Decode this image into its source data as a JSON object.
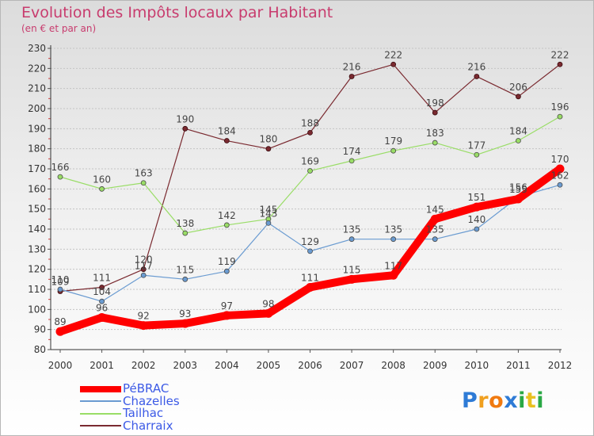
{
  "chart_data": {
    "type": "line",
    "title": "Evolution des Impôts locaux par Habitant",
    "subtitle": "(en € et par an)",
    "x": [
      "2000",
      "2001",
      "2002",
      "2003",
      "2004",
      "2005",
      "2006",
      "2007",
      "2008",
      "2009",
      "2010",
      "2011",
      "2012"
    ],
    "y_ticks": [
      "80",
      "90",
      "100",
      "110",
      "120",
      "130",
      "140",
      "150",
      "160",
      "170",
      "180",
      "190",
      "200",
      "210",
      "220",
      "230"
    ],
    "ylim": [
      80,
      230
    ],
    "grid": "horizontal dotted",
    "legend_position": "bottom-left",
    "series": [
      {
        "name": "PéBRAC",
        "color": "#ff0000",
        "values": [
          89,
          96,
          92,
          93,
          97,
          98,
          111,
          115,
          117,
          145,
          151,
          155,
          170
        ],
        "labels": [
          "89",
          "96",
          "92",
          "93",
          "97",
          "98",
          "111",
          "115",
          "117",
          "145",
          "151",
          "155",
          "170"
        ]
      },
      {
        "name": "Chazelles",
        "color": "#6a9bd1",
        "values": [
          110,
          104,
          117,
          115,
          119,
          143,
          129,
          135,
          135,
          135,
          140,
          156,
          162
        ],
        "labels": [
          "110",
          "104",
          "117",
          "115",
          "119",
          "143",
          "129",
          "135",
          "135",
          "135",
          "140",
          "156",
          "162"
        ]
      },
      {
        "name": "Tailhac",
        "color": "#99dd66",
        "values": [
          166,
          160,
          163,
          138,
          142,
          145,
          169,
          174,
          179,
          183,
          177,
          184,
          196
        ],
        "labels": [
          "166",
          "160",
          "163",
          "138",
          "142",
          "145",
          "169",
          "174",
          "179",
          "183",
          "177",
          "184",
          "196"
        ]
      },
      {
        "name": "Charraix",
        "color": "#7a2a30",
        "values": [
          109,
          111,
          120,
          190,
          184,
          180,
          188,
          216,
          222,
          198,
          216,
          206,
          222
        ],
        "labels": [
          "109",
          "111",
          "120",
          "190",
          "184",
          "180",
          "188",
          "216",
          "222",
          "198",
          "216",
          "206",
          "222"
        ]
      }
    ]
  },
  "logo": {
    "letters": [
      "P",
      "r",
      "o",
      "x",
      "i",
      "t",
      "i"
    ],
    "colors": [
      "#2e7bd6",
      "#f0a020",
      "#f07a10",
      "#2e7bd6",
      "#2aa845",
      "#e8c020",
      "#2aa845"
    ]
  }
}
